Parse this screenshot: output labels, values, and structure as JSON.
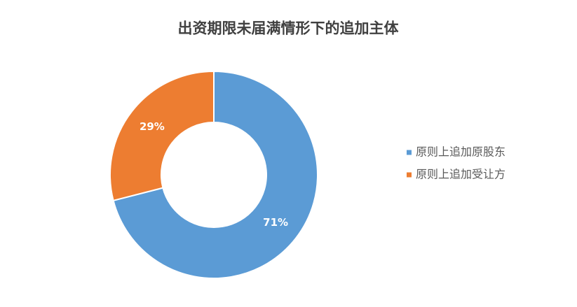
{
  "chart_data": {
    "type": "donut",
    "title": "出资期限未届满情形下的追加主体",
    "categories": [
      "原则上追加原股东",
      "原则上追加受让方"
    ],
    "values": [
      71,
      29
    ],
    "value_labels": [
      "71%",
      "29%"
    ],
    "colors": [
      "#5b9bd5",
      "#ed7d31"
    ],
    "legend": "right"
  }
}
